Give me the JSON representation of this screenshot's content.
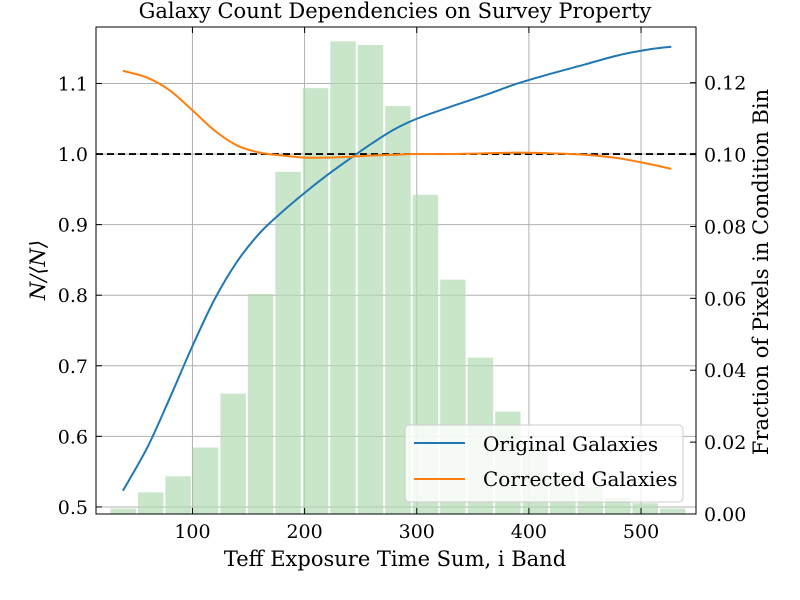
{
  "chart_data": {
    "type": "line",
    "title": "Galaxy Count Dependencies on Survey Property",
    "xlabel": "Teff Exposure Time Sum, i Band",
    "ylabel": "N/⟨N⟩",
    "y2label": "Fraction of Pixels in Condition Bin",
    "xlim": [
      14,
      549
    ],
    "ylim": [
      0.49,
      1.18
    ],
    "y2lim": [
      0.0,
      0.1355
    ],
    "xticks": [
      100,
      200,
      300,
      400,
      500
    ],
    "yticks": [
      0.5,
      0.6,
      0.7,
      0.8,
      0.9,
      1.0,
      1.1
    ],
    "y2ticks": [
      0.0,
      0.02,
      0.04,
      0.06,
      0.08,
      0.1,
      0.12
    ],
    "xtick_labels": [
      "100",
      "200",
      "300",
      "400",
      "500"
    ],
    "ytick_labels": [
      "0.5",
      "0.6",
      "0.7",
      "0.8",
      "0.9",
      "1.0",
      "1.1"
    ],
    "y2tick_labels": [
      "0.00",
      "0.02",
      "0.04",
      "0.06",
      "0.08",
      "0.10",
      "0.12"
    ],
    "grid": true,
    "reference_line": 1.0,
    "legend_position": "lower-right",
    "histogram": {
      "color": "#b3dbb3",
      "bin_width": 24.5,
      "bin_starts": [
        26,
        50.5,
        75,
        99.5,
        124,
        148.5,
        173,
        197.5,
        222,
        246.5,
        271,
        295.5,
        320,
        344.5,
        369,
        393.5,
        418,
        442.5,
        467,
        491.5,
        516
      ],
      "fractions": [
        0.0015,
        0.006,
        0.0105,
        0.0185,
        0.0335,
        0.0612,
        0.0952,
        0.1185,
        0.1315,
        0.1305,
        0.1135,
        0.0888,
        0.0652,
        0.0435,
        0.0285,
        0.0185,
        0.0115,
        0.0075,
        0.0045,
        0.003,
        0.0015
      ]
    },
    "series": [
      {
        "name": "Original Galaxies",
        "color": "#1f77b4",
        "x": [
          38,
          60,
          80,
          100,
          120,
          140,
          160,
          180,
          200,
          220,
          240,
          260,
          280,
          300,
          330,
          360,
          390,
          420,
          450,
          480,
          510,
          527
        ],
        "y": [
          0.523,
          0.585,
          0.655,
          0.728,
          0.795,
          0.848,
          0.888,
          0.918,
          0.945,
          0.97,
          0.993,
          1.015,
          1.035,
          1.05,
          1.067,
          1.083,
          1.1,
          1.114,
          1.127,
          1.14,
          1.149,
          1.152
        ]
      },
      {
        "name": "Corrected Galaxies",
        "color": "#ff7f0e",
        "x": [
          38,
          60,
          80,
          100,
          120,
          140,
          160,
          180,
          200,
          220,
          240,
          260,
          280,
          300,
          330,
          360,
          390,
          420,
          450,
          480,
          510,
          527
        ],
        "y": [
          1.118,
          1.108,
          1.09,
          1.062,
          1.033,
          1.012,
          1.002,
          0.998,
          0.995,
          0.995,
          0.996,
          0.998,
          0.999,
          1.0,
          1.0,
          1.001,
          1.002,
          1.001,
          0.999,
          0.994,
          0.985,
          0.979
        ]
      }
    ]
  }
}
